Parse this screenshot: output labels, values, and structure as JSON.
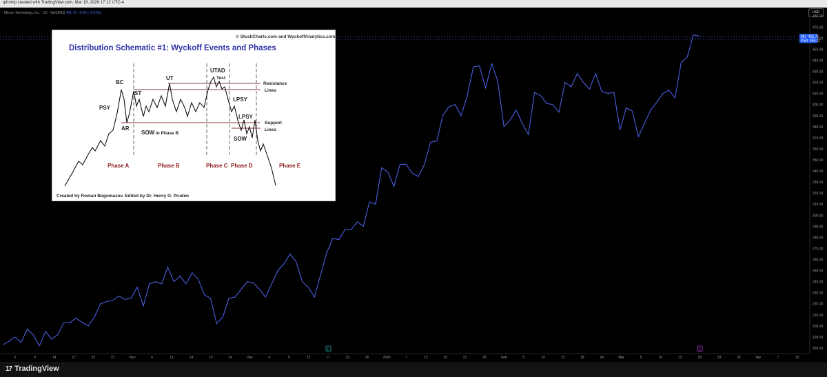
{
  "header": {
    "created_by": "qthomp created with TradingView.com, Mar 18, 2026 17:12 UTC-4"
  },
  "legend": {
    "symbol": "Micron Technology, Inc. · 1D · NASDAQ",
    "values": "461.71",
    "change": "−0.04 (−0.01%)"
  },
  "currency_button": "USD",
  "price_axis": {
    "ticks": [
      "480.00",
      "470.00",
      "460.00",
      "450.00",
      "440.00",
      "430.00",
      "420.00",
      "410.00",
      "400.00",
      "390.00",
      "380.00",
      "370.00",
      "360.00",
      "350.00",
      "340.00",
      "330.00",
      "320.00",
      "310.00",
      "300.00",
      "290.00",
      "280.00",
      "270.00",
      "260.00",
      "250.00",
      "240.00",
      "230.00",
      "220.00",
      "210.00",
      "200.00",
      "190.00",
      "180.00"
    ],
    "last_price_label": "MU",
    "last_price_value": "461.71",
    "post_label": "Post",
    "post_value": "459.11"
  },
  "time_axis": {
    "labels": [
      "6",
      "9",
      "14",
      "17",
      "22",
      "27",
      "Nov",
      "6",
      "11",
      "14",
      "19",
      "24",
      "Dec",
      "4",
      "9",
      "12",
      "17",
      "22",
      "26",
      "2026",
      "7",
      "12",
      "15",
      "21",
      "26",
      "Feb",
      "5",
      "10",
      "13",
      "18",
      "24",
      "Mar",
      "5",
      "10",
      "13",
      "18",
      "23",
      "26",
      "Apr",
      "7",
      "10"
    ]
  },
  "markers": {
    "earnings": "E",
    "dividend": "E"
  },
  "branding": {
    "name": "TradingView",
    "mark": "17"
  },
  "colors": {
    "line": "#4a5fe0",
    "background": "#000000",
    "accent": "#2962ff",
    "inset_title": "#3333aa",
    "phase_label": "#8b1a1a"
  },
  "chart_data": {
    "type": "line",
    "title": "",
    "xlabel": "",
    "ylabel": "",
    "ylim": [
      175,
      487
    ],
    "series": [
      {
        "values": [
          183,
          186,
          190,
          185,
          197,
          192,
          182,
          195,
          188,
          192,
          203,
          203,
          207,
          203,
          200,
          208,
          220,
          222,
          223,
          227,
          224,
          225,
          235,
          218,
          238,
          240,
          238,
          253,
          240,
          245,
          238,
          248,
          242,
          228,
          225,
          202,
          208,
          225,
          226,
          233,
          240,
          239,
          233,
          226,
          238,
          250,
          256,
          265,
          258,
          240,
          235,
          226,
          246,
          266,
          279,
          278,
          287,
          287,
          294,
          290,
          312,
          310,
          343,
          339,
          326,
          346,
          346,
          338,
          335,
          346,
          366,
          367,
          390,
          398,
          400,
          390,
          408,
          434,
          435,
          415,
          437,
          421,
          380,
          386,
          395,
          383,
          373,
          411,
          408,
          401,
          400,
          393,
          420,
          416,
          428,
          420,
          414,
          428,
          412,
          410,
          411,
          377,
          397,
          394,
          371,
          383,
          395,
          402,
          410,
          413,
          406,
          438,
          443,
          463,
          461.71
        ]
      }
    ]
  },
  "inset": {
    "copyright": "© StockCharts.com and WyckoffAnalytics.com",
    "title": "Distribution Schematic #1: Wyckoff Events and Phases",
    "credit": "Created by Roman Bogomazov. Edited by Dr. Henry O. Pruden",
    "events": {
      "bc": "BC",
      "psy": "PSY",
      "st": "ST",
      "ar": "AR",
      "ut": "UT",
      "sow_b": "SOW",
      "sow_b_suffix": "in Phase B",
      "utad": "UTAD",
      "test": "Test",
      "lpsy1": "LPSY",
      "lpsy2": "LPSY",
      "sow": "SOW"
    },
    "resistance_label": "Resistance",
    "resistance_label2": "Lines",
    "support_label": "Support",
    "support_label2": "Lines",
    "phases": [
      "Phase A",
      "Phase B",
      "Phase C",
      "Phase D",
      "Phase E"
    ]
  }
}
